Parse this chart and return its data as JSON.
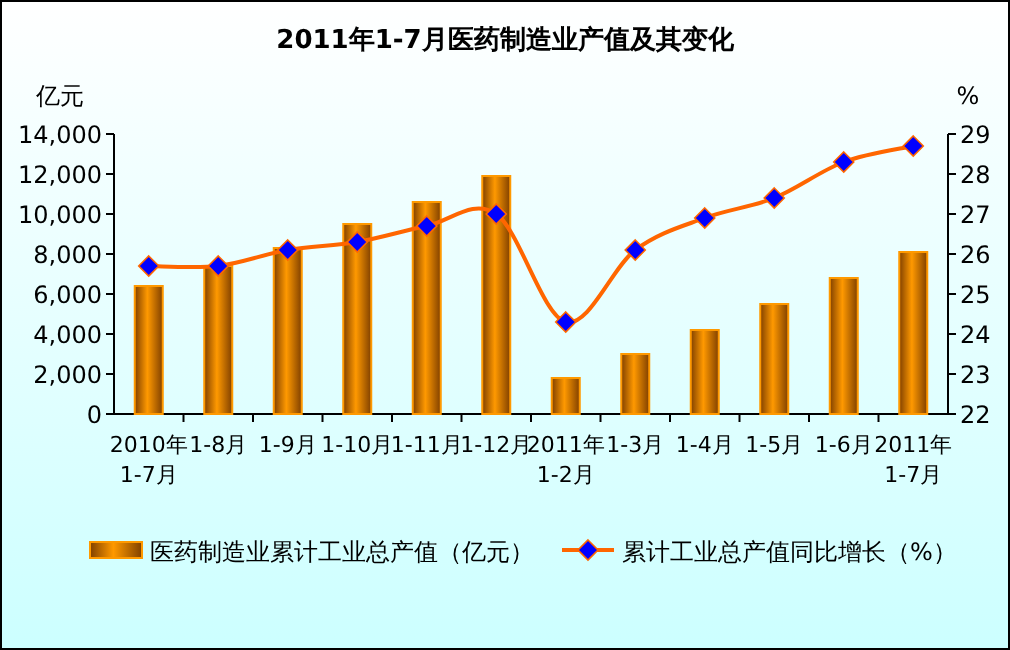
{
  "chart_data": {
    "type": "bar",
    "title": "2011年1-7月医药制造业产值及其变化",
    "ylabel": "亿元",
    "y2label": "%",
    "categories": [
      "2010年 1-7月",
      "1-8月",
      "1-9月",
      "1-10月",
      "1-11月",
      "1-12月",
      "2011年 1-2月",
      "1-3月",
      "1-4月",
      "1-5月",
      "1-6月",
      "2011年 1-7月"
    ],
    "series": [
      {
        "name": "医药制造业累计工业总产值（亿元）",
        "color": "#ff9900",
        "values": [
          6400,
          7400,
          8300,
          9500,
          10600,
          11900,
          1800,
          3000,
          4200,
          5500,
          6800,
          8100
        ]
      },
      {
        "name": "累计工业总产值同比增长（%）",
        "type": "line",
        "axis": "y2",
        "color": "#ff6600",
        "marker": "diamond",
        "values": [
          25.7,
          25.7,
          26.1,
          26.3,
          26.7,
          27.0,
          24.3,
          26.1,
          26.9,
          27.4,
          28.3,
          28.7
        ]
      }
    ],
    "ylim": [
      0,
      14000
    ],
    "yticks": [
      0,
      {
        "value": 2000,
        "label": "2,000"
      },
      {
        "value": 4000,
        "label": "4,000"
      },
      {
        "value": 6000,
        "label": "6,000"
      },
      {
        "value": 8000,
        "label": "8,000"
      },
      {
        "value": 10000,
        "label": "10,000"
      },
      {
        "value": 12000,
        "label": "12,000"
      },
      {
        "value": 14000,
        "label": "14,000"
      }
    ],
    "y2lim": [
      22,
      29
    ],
    "y2ticks": [
      22,
      23,
      24,
      25,
      26,
      27,
      28,
      29
    ],
    "grid": false,
    "legend": "bottom"
  }
}
